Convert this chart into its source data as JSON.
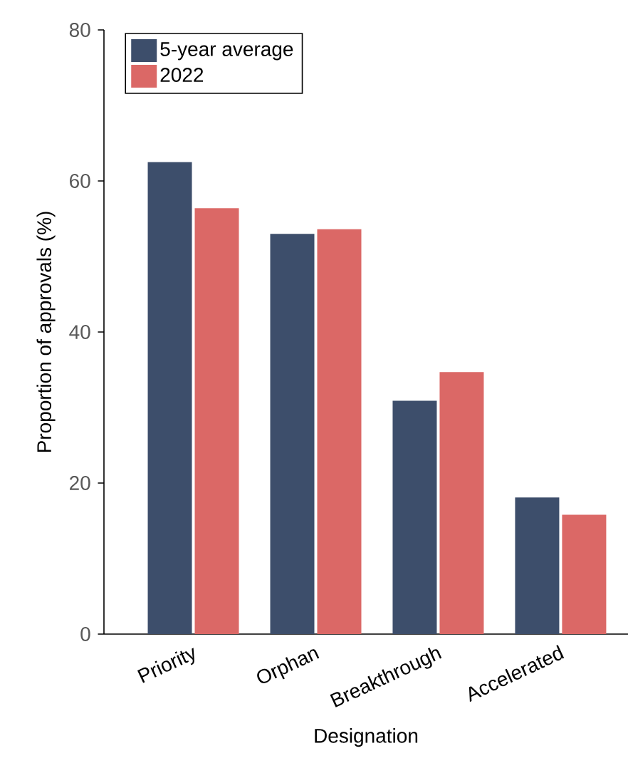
{
  "chart_data": {
    "type": "bar",
    "xlabel": "Designation",
    "ylabel": "Proportion of approvals (%)",
    "categories": [
      "Priority",
      "Orphan",
      "Breakthrough",
      "Accelerated"
    ],
    "series": [
      {
        "name": "5-year average",
        "color": "#3d4e6b",
        "values": [
          62.5,
          53.0,
          30.9,
          18.1
        ]
      },
      {
        "name": "2022",
        "color": "#db6866",
        "values": [
          56.4,
          53.6,
          34.7,
          15.8
        ]
      }
    ],
    "ylim": [
      0,
      80
    ],
    "yticks": [
      0,
      20,
      40,
      60,
      80
    ],
    "grid": false,
    "legend": "top left"
  }
}
